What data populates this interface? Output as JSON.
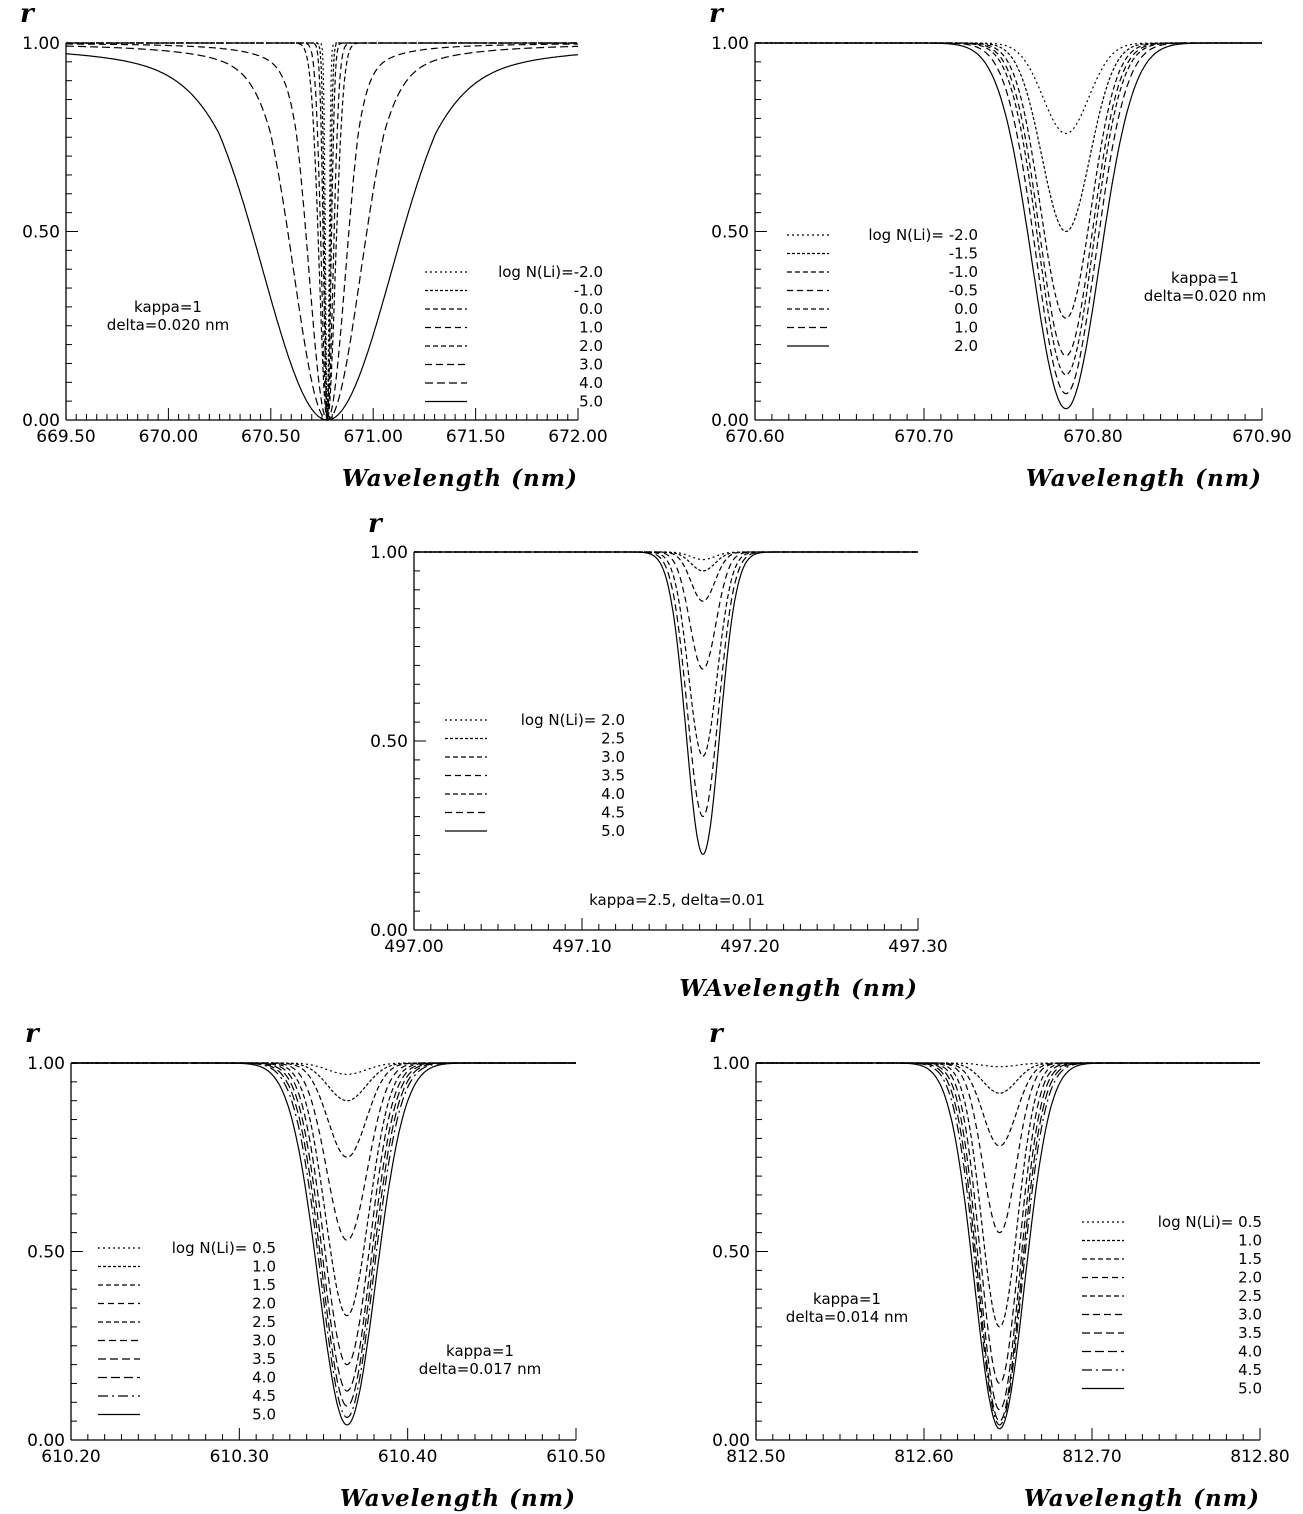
{
  "chart_data": [
    {
      "type": "line",
      "ylabel": "r",
      "xlabel": "Wavelength (nm)",
      "xlim": [
        669.5,
        672.0
      ],
      "ylim": [
        0,
        1
      ],
      "xticks": [
        "669.50",
        "670.00",
        "670.50",
        "671.00",
        "671.50",
        "672.00"
      ],
      "yticks": [
        "0.00",
        "0.50",
        "1.00"
      ],
      "annotation": [
        "kappa=1",
        "delta=0.020  nm"
      ],
      "legend_position": "right",
      "center": 670.776,
      "series": [
        {
          "name": "log  N(Li)=-2.0",
          "depth": 1.0,
          "width": 0.012
        },
        {
          "name": "-1.0",
          "depth": 1.0,
          "width": 0.018
        },
        {
          "name": "0.0",
          "depth": 1.0,
          "width": 0.025
        },
        {
          "name": "1.0",
          "depth": 1.0,
          "width": 0.04
        },
        {
          "name": "2.0",
          "depth": 1.0,
          "width": 0.055
        },
        {
          "name": "3.0",
          "depth": 1.0,
          "width": 0.12
        },
        {
          "name": "4.0",
          "depth": 1.0,
          "width": 0.22
        },
        {
          "name": "5.0",
          "depth": 1.0,
          "width": 0.42
        }
      ]
    },
    {
      "type": "line",
      "ylabel": "r",
      "xlabel": "Wavelength (nm)",
      "xlim": [
        670.6,
        670.9
      ],
      "ylim": [
        0,
        1
      ],
      "xticks": [
        "670.60",
        "670.70",
        "670.80",
        "670.90"
      ],
      "yticks": [
        "0.00",
        "0.50",
        "1.00"
      ],
      "annotation": [
        "kappa=1",
        "delta=0.020  nm"
      ],
      "legend_position": "left",
      "center": 670.784,
      "series": [
        {
          "name": "log  N(Li)=  -2.0",
          "depth": 0.24,
          "width": 0.019
        },
        {
          "name": "-1.5",
          "depth": 0.5,
          "width": 0.02
        },
        {
          "name": "-1.0",
          "depth": 0.73,
          "width": 0.021
        },
        {
          "name": "-0.5",
          "depth": 0.83,
          "width": 0.022
        },
        {
          "name": "0.0",
          "depth": 0.88,
          "width": 0.023
        },
        {
          "name": "1.0",
          "depth": 0.93,
          "width": 0.025
        },
        {
          "name": "2.0",
          "depth": 0.97,
          "width": 0.028
        }
      ]
    },
    {
      "type": "line",
      "ylabel": "r",
      "xlabel": "WAvelength (nm)",
      "xlim": [
        497.0,
        497.3
      ],
      "ylim": [
        0,
        1
      ],
      "xticks": [
        "497.00",
        "497.10",
        "497.20",
        "497.30"
      ],
      "yticks": [
        "0.00",
        "0.50",
        "1.00"
      ],
      "annotation": [
        "kappa=2.5,  delta=0.01"
      ],
      "legend_position": "left",
      "center": 497.172,
      "series": [
        {
          "name": "log  N(Li)=  2.0",
          "depth": 0.02,
          "width": 0.01
        },
        {
          "name": "2.5",
          "depth": 0.05,
          "width": 0.01
        },
        {
          "name": "3.0",
          "depth": 0.13,
          "width": 0.01
        },
        {
          "name": "3.5",
          "depth": 0.31,
          "width": 0.011
        },
        {
          "name": "4.0",
          "depth": 0.54,
          "width": 0.012
        },
        {
          "name": "4.5",
          "depth": 0.7,
          "width": 0.013
        },
        {
          "name": "5.0",
          "depth": 0.8,
          "width": 0.014
        }
      ]
    },
    {
      "type": "line",
      "ylabel": "r",
      "xlabel": "Wavelength (nm)",
      "xlim": [
        610.2,
        610.5
      ],
      "ylim": [
        0,
        1
      ],
      "xticks": [
        "610.20",
        "610.30",
        "610.40",
        "610.50"
      ],
      "yticks": [
        "0.00",
        "0.50",
        "1.00"
      ],
      "annotation": [
        "kappa=1",
        "delta=0.017  nm"
      ],
      "legend_position": "left",
      "center": 610.364,
      "series": [
        {
          "name": "log  N(Li)=  0.5",
          "depth": 0.03,
          "width": 0.016
        },
        {
          "name": "1.0",
          "depth": 0.1,
          "width": 0.016
        },
        {
          "name": "1.5",
          "depth": 0.25,
          "width": 0.016
        },
        {
          "name": "2.0",
          "depth": 0.47,
          "width": 0.017
        },
        {
          "name": "2.5",
          "depth": 0.67,
          "width": 0.018
        },
        {
          "name": "3.0",
          "depth": 0.8,
          "width": 0.019
        },
        {
          "name": "3.5",
          "depth": 0.87,
          "width": 0.02
        },
        {
          "name": "4.0",
          "depth": 0.91,
          "width": 0.021
        },
        {
          "name": "4.5",
          "depth": 0.94,
          "width": 0.022
        },
        {
          "name": "5.0",
          "depth": 0.96,
          "width": 0.024
        }
      ]
    },
    {
      "type": "line",
      "ylabel": "r",
      "xlabel": "Wavelength (nm)",
      "xlim": [
        812.5,
        812.8
      ],
      "ylim": [
        0,
        1
      ],
      "xticks": [
        "812.50",
        "812.60",
        "812.70",
        "812.80"
      ],
      "yticks": [
        "0.00",
        "0.50",
        "1.00"
      ],
      "annotation": [
        "kappa=1",
        "delta=0.014  nm"
      ],
      "legend_position": "right",
      "center": 812.645,
      "series": [
        {
          "name": "log  N(Li)=  0.5",
          "depth": 0.01,
          "width": 0.014
        },
        {
          "name": "1.0",
          "depth": 0.08,
          "width": 0.014
        },
        {
          "name": "1.5",
          "depth": 0.22,
          "width": 0.014
        },
        {
          "name": "2.0",
          "depth": 0.45,
          "width": 0.014
        },
        {
          "name": "2.5",
          "depth": 0.7,
          "width": 0.015
        },
        {
          "name": "3.0",
          "depth": 0.85,
          "width": 0.016
        },
        {
          "name": "3.5",
          "depth": 0.92,
          "width": 0.017
        },
        {
          "name": "4.0",
          "depth": 0.95,
          "width": 0.018
        },
        {
          "name": "4.5",
          "depth": 0.96,
          "width": 0.019
        },
        {
          "name": "5.0",
          "depth": 0.97,
          "width": 0.021
        }
      ]
    }
  ]
}
